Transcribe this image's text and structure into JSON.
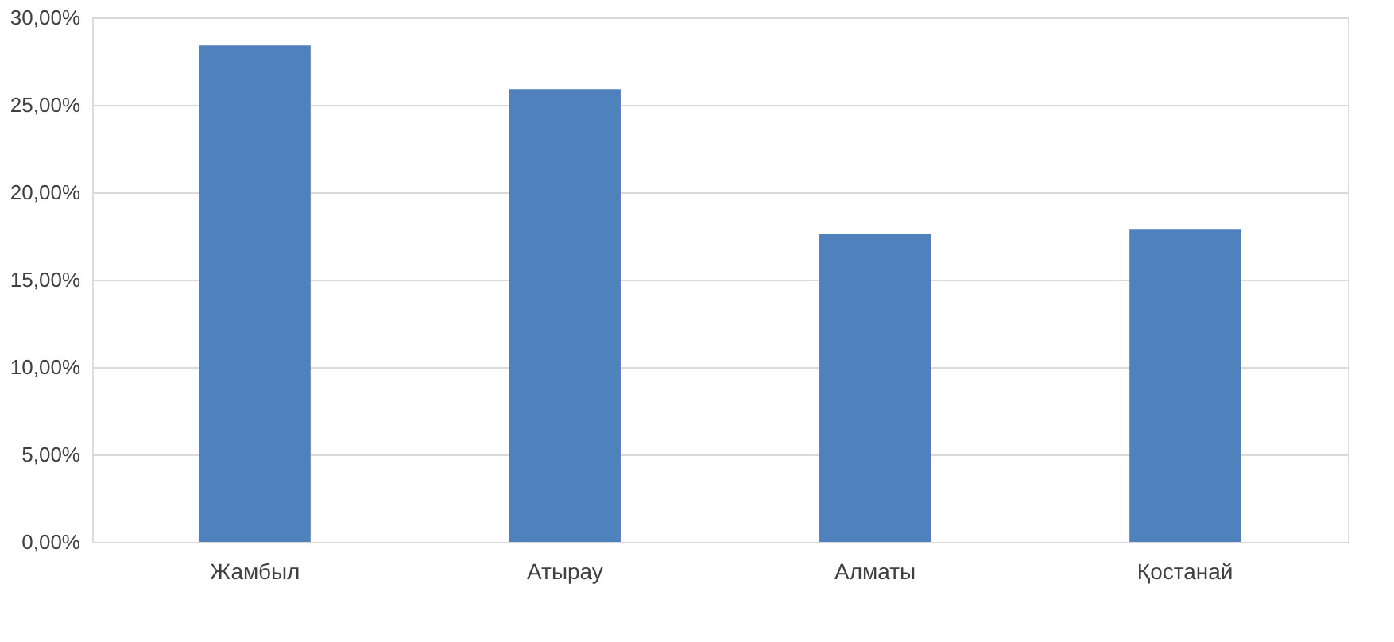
{
  "chart_data": {
    "type": "bar",
    "categories": [
      "Жамбыл",
      "Атырау",
      "Алматы",
      "Қостанай"
    ],
    "values": [
      28.4,
      25.9,
      17.6,
      17.9
    ],
    "color": "#4f81bd",
    "ylim": [
      0,
      30
    ],
    "yticks": [
      {
        "value": 0,
        "label": "0,00%"
      },
      {
        "value": 5,
        "label": "5,00%"
      },
      {
        "value": 10,
        "label": "10,00%"
      },
      {
        "value": 15,
        "label": "15,00%"
      },
      {
        "value": 20,
        "label": "20,00%"
      },
      {
        "value": 25,
        "label": "25,00%"
      },
      {
        "value": 30,
        "label": "30,00%"
      }
    ],
    "grid": "y"
  }
}
